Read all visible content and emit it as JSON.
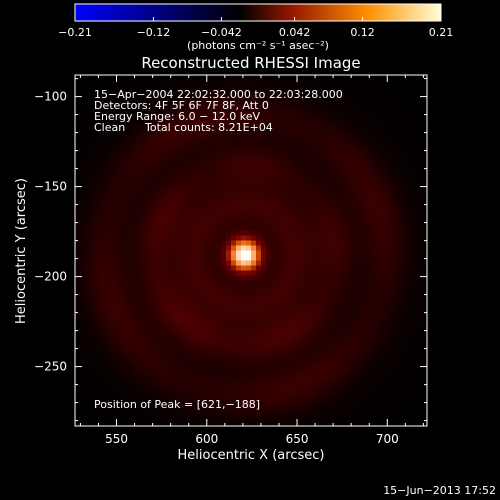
{
  "chart_data": {
    "type": "heatmap",
    "title": "Reconstructed RHESSI Image",
    "xlabel": "Heliocentric X (arcsec)",
    "ylabel": "Heliocentric Y (arcsec)",
    "xlim": [
      527,
      722
    ],
    "ylim": [
      -283,
      -88
    ],
    "x_ticks": [
      550,
      600,
      650,
      700
    ],
    "x_tick_labels": [
      "550",
      "600",
      "650",
      "700"
    ],
    "y_ticks": [
      -100,
      -150,
      -200,
      -250
    ],
    "y_tick_labels": [
      "−100",
      "−150",
      "−200",
      "−250"
    ],
    "colorbar": {
      "range": [
        -0.21,
        0.21
      ],
      "tick_values": [
        -0.21,
        -0.12,
        -0.042,
        0.042,
        0.12,
        0.21
      ],
      "tick_labels": [
        "−0.21",
        "−0.12",
        "−0.042",
        "0.042",
        "0.12",
        "0.21"
      ],
      "label": "(photons cm⁻² s⁻¹ asec⁻²)",
      "colormap": "red-temperature (IDL color table 3)"
    },
    "annotations": {
      "time_range": "15−Apr−2004 22:02:32.000 to 22:03:28.000",
      "detectors": "Detectors: 4F 5F 6F 7F 8F, Att 0",
      "energy": "Energy Range: 6.0 − 12.0 keV",
      "algorithm": "Clean",
      "total_counts": "Total counts: 8.21E+04",
      "peak": "Position of Peak = [621,−188]"
    },
    "source": {
      "peak_position": [
        621,
        -188
      ],
      "peak_value": 0.21,
      "core_fwhm_arcsec": 14,
      "ring_radii_arcsec": [
        50,
        78
      ],
      "ring_level": 0.03
    }
  },
  "footer": {
    "date": "15−Jun−2013 17:52"
  },
  "colors": {
    "background": "#000000",
    "axis": "#ffffff",
    "text": "#ffffff"
  }
}
